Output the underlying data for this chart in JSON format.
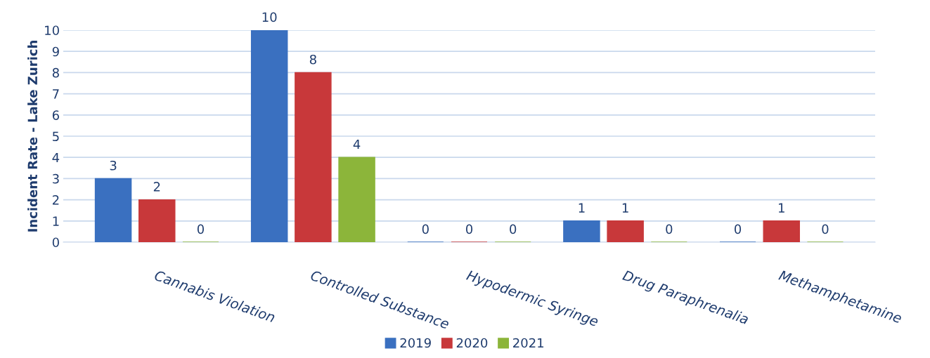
{
  "chart_data": {
    "type": "bar",
    "ylabel": "Incident Rate - Lake Zurich",
    "categories": [
      "Cannabis Violation",
      "Controlled Substance",
      "Hypodermic Syringe",
      "Drug Paraphrenalia",
      "Methamphetamine"
    ],
    "series": [
      {
        "name": "2019",
        "color": "#3a70c0",
        "values": [
          3,
          10,
          0,
          1,
          0
        ]
      },
      {
        "name": "2020",
        "color": "#c8383a",
        "values": [
          2,
          8,
          0,
          1,
          1
        ]
      },
      {
        "name": "2021",
        "color": "#8cb53a",
        "values": [
          0,
          4,
          0,
          0,
          0
        ]
      }
    ],
    "ylim": [
      0,
      10
    ],
    "yticks": [
      0,
      1,
      2,
      3,
      4,
      5,
      6,
      7,
      8,
      9,
      10
    ],
    "grid": "y",
    "legend": "bottom",
    "data_labels": true
  }
}
